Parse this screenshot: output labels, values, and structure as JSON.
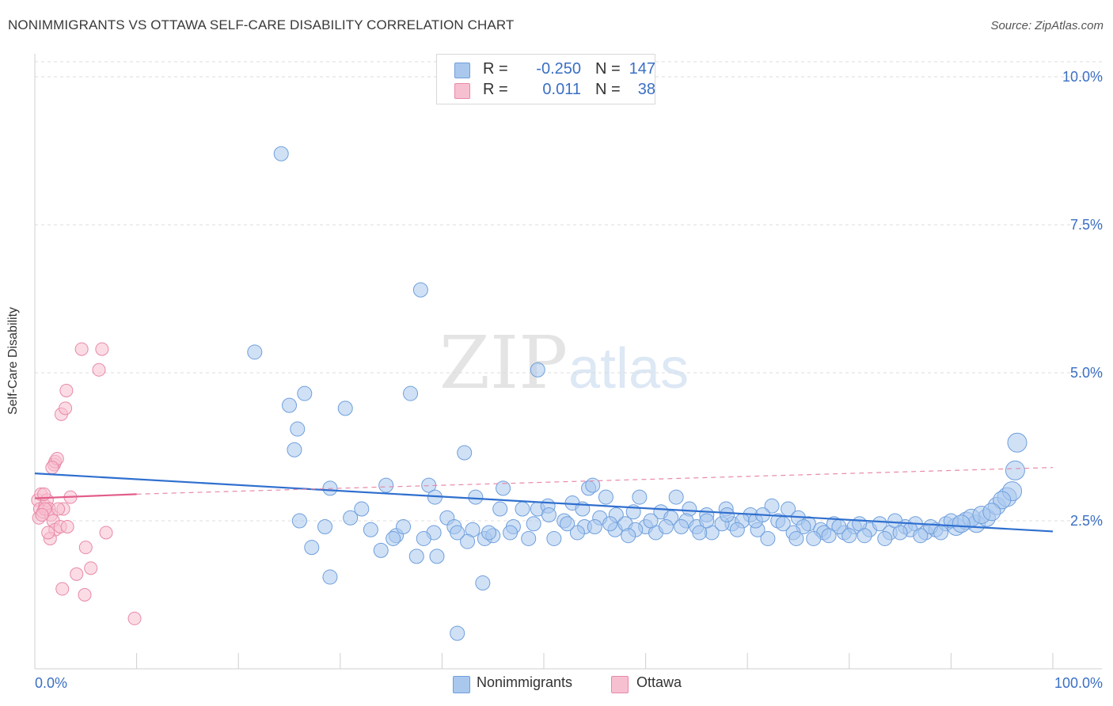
{
  "title": "NONIMMIGRANTS VS OTTAWA SELF-CARE DISABILITY CORRELATION CHART",
  "source": "Source: ZipAtlas.com",
  "watermark": {
    "zip": "ZIP",
    "atlas": "atlas"
  },
  "legend": {
    "rows": [
      {
        "r_label": "R =",
        "r_value": "-0.250",
        "n_label": "N =",
        "n_value": "147",
        "color": "#aac8ee",
        "border": "#6f9fdc"
      },
      {
        "r_label": "R =",
        "r_value": "0.011",
        "n_label": "N =",
        "n_value": "38",
        "color": "#f7c0d0",
        "border": "#e889a8"
      }
    ]
  },
  "bottom_legend": [
    {
      "label": "Nonimmigrants",
      "color": "#aac8ee",
      "border": "#6f9fdc"
    },
    {
      "label": "Ottawa",
      "color": "#f7c0d0",
      "border": "#e889a8"
    }
  ],
  "chart_data": {
    "type": "scatter",
    "title": "NONIMMIGRANTS VS OTTAWA SELF-CARE DISABILITY CORRELATION CHART",
    "xlabel": "",
    "ylabel": "Self-Care Disability",
    "xlim": [
      0,
      100
    ],
    "ylim": [
      0,
      10.5
    ],
    "x_tick_labels": [
      {
        "value": 0,
        "label": "0.0%"
      },
      {
        "value": 100,
        "label": "100.0%"
      }
    ],
    "y_tick_labels": [
      {
        "value": 2.5,
        "label": "2.5%"
      },
      {
        "value": 5.0,
        "label": "5.0%"
      },
      {
        "value": 7.5,
        "label": "7.5%"
      },
      {
        "value": 10.0,
        "label": "10.0%"
      }
    ],
    "grid": true,
    "legend_position": "top-center",
    "series": [
      {
        "name": "Nonimmigrants",
        "color": "#6f9fdc",
        "fill": "#aac8ee",
        "trend": {
          "x0": 0,
          "y0": 3.3,
          "x1": 100,
          "y1": 2.32,
          "dashed_extension": false
        },
        "points": [
          [
            24.2,
            8.7
          ],
          [
            37.9,
            6.4
          ],
          [
            21.6,
            5.35
          ],
          [
            49.4,
            5.05
          ],
          [
            26.5,
            4.65
          ],
          [
            36.9,
            4.65
          ],
          [
            25.0,
            4.45
          ],
          [
            30.5,
            4.4
          ],
          [
            25.8,
            4.05
          ],
          [
            25.5,
            3.7
          ],
          [
            42.2,
            3.65
          ],
          [
            96.5,
            3.82
          ],
          [
            29.0,
            3.05
          ],
          [
            34.5,
            3.1
          ],
          [
            38.7,
            3.1
          ],
          [
            46.0,
            3.05
          ],
          [
            54.4,
            3.05
          ],
          [
            54.8,
            3.1
          ],
          [
            39.3,
            2.9
          ],
          [
            43.3,
            2.9
          ],
          [
            56.1,
            2.9
          ],
          [
            59.4,
            2.9
          ],
          [
            63.0,
            2.9
          ],
          [
            32.1,
            2.7
          ],
          [
            45.7,
            2.7
          ],
          [
            47.9,
            2.7
          ],
          [
            49.4,
            2.7
          ],
          [
            50.4,
            2.75
          ],
          [
            52.8,
            2.8
          ],
          [
            53.8,
            2.7
          ],
          [
            57.1,
            2.6
          ],
          [
            58.8,
            2.65
          ],
          [
            61.5,
            2.65
          ],
          [
            64.3,
            2.7
          ],
          [
            66.0,
            2.6
          ],
          [
            67.9,
            2.7
          ],
          [
            70.3,
            2.6
          ],
          [
            72.4,
            2.75
          ],
          [
            74.0,
            2.7
          ],
          [
            26.0,
            2.5
          ],
          [
            28.5,
            2.4
          ],
          [
            31.0,
            2.55
          ],
          [
            33.0,
            2.35
          ],
          [
            35.5,
            2.25
          ],
          [
            36.2,
            2.4
          ],
          [
            40.5,
            2.55
          ],
          [
            41.2,
            2.4
          ],
          [
            43.0,
            2.35
          ],
          [
            44.2,
            2.2
          ],
          [
            47.0,
            2.4
          ],
          [
            48.5,
            2.2
          ],
          [
            50.5,
            2.6
          ],
          [
            52.0,
            2.5
          ],
          [
            54.0,
            2.4
          ],
          [
            55.5,
            2.55
          ],
          [
            57.0,
            2.35
          ],
          [
            58.0,
            2.45
          ],
          [
            60.0,
            2.4
          ],
          [
            61.0,
            2.3
          ],
          [
            62.5,
            2.55
          ],
          [
            64.0,
            2.5
          ],
          [
            65.0,
            2.4
          ],
          [
            66.5,
            2.3
          ],
          [
            68.5,
            2.45
          ],
          [
            69.5,
            2.5
          ],
          [
            71.0,
            2.35
          ],
          [
            73.0,
            2.5
          ],
          [
            75.0,
            2.55
          ],
          [
            76.0,
            2.45
          ],
          [
            77.2,
            2.35
          ],
          [
            78.5,
            2.45
          ],
          [
            79.5,
            2.3
          ],
          [
            80.5,
            2.4
          ],
          [
            82.0,
            2.35
          ],
          [
            83.0,
            2.45
          ],
          [
            84.0,
            2.3
          ],
          [
            85.5,
            2.4
          ],
          [
            86.5,
            2.45
          ],
          [
            87.5,
            2.3
          ],
          [
            88.5,
            2.35
          ],
          [
            89.5,
            2.45
          ],
          [
            90.5,
            2.4
          ],
          [
            91.5,
            2.5
          ],
          [
            92.5,
            2.45
          ],
          [
            93.5,
            2.55
          ],
          [
            94.5,
            2.75
          ],
          [
            95.5,
            2.9
          ],
          [
            96.0,
            3.0
          ],
          [
            92.0,
            2.55
          ],
          [
            90.0,
            2.5
          ],
          [
            88.0,
            2.4
          ],
          [
            86.0,
            2.35
          ],
          [
            84.5,
            2.5
          ],
          [
            81.0,
            2.45
          ],
          [
            79.0,
            2.4
          ],
          [
            77.5,
            2.3
          ],
          [
            76.5,
            2.2
          ],
          [
            75.5,
            2.4
          ],
          [
            74.5,
            2.3
          ],
          [
            73.5,
            2.45
          ],
          [
            72.0,
            2.2
          ],
          [
            70.8,
            2.5
          ],
          [
            69.0,
            2.35
          ],
          [
            67.5,
            2.45
          ],
          [
            66.0,
            2.5
          ],
          [
            65.3,
            2.3
          ],
          [
            63.5,
            2.4
          ],
          [
            62.0,
            2.4
          ],
          [
            60.5,
            2.5
          ],
          [
            59.0,
            2.35
          ],
          [
            58.3,
            2.25
          ],
          [
            56.5,
            2.45
          ],
          [
            55.0,
            2.4
          ],
          [
            53.3,
            2.3
          ],
          [
            52.3,
            2.45
          ],
          [
            51.0,
            2.2
          ],
          [
            49.0,
            2.45
          ],
          [
            46.7,
            2.3
          ],
          [
            45.0,
            2.25
          ],
          [
            44.6,
            2.3
          ],
          [
            42.5,
            2.15
          ],
          [
            41.5,
            2.3
          ],
          [
            39.2,
            2.3
          ],
          [
            38.2,
            2.2
          ],
          [
            35.2,
            2.2
          ],
          [
            34.0,
            2.0
          ],
          [
            27.2,
            2.05
          ],
          [
            37.5,
            1.9
          ],
          [
            39.5,
            1.9
          ],
          [
            29.0,
            1.55
          ],
          [
            44.0,
            1.45
          ],
          [
            41.5,
            0.6
          ],
          [
            81.5,
            2.25
          ],
          [
            83.5,
            2.2
          ],
          [
            85.0,
            2.3
          ],
          [
            87.0,
            2.25
          ],
          [
            89.0,
            2.3
          ],
          [
            91.0,
            2.45
          ],
          [
            93.0,
            2.6
          ],
          [
            95.0,
            2.85
          ],
          [
            96.3,
            3.35
          ],
          [
            94.0,
            2.65
          ],
          [
            80.0,
            2.25
          ],
          [
            78.0,
            2.25
          ],
          [
            68.0,
            2.6
          ],
          [
            71.5,
            2.6
          ],
          [
            74.8,
            2.2
          ]
        ]
      },
      {
        "name": "Ottawa",
        "color": "#e889a8",
        "fill": "#f7c0d0",
        "trend": {
          "x0": 0,
          "y0": 2.88,
          "x1": 10,
          "y1": 2.95,
          "dashed_to": {
            "x": 100,
            "y": 3.4
          }
        },
        "points": [
          [
            0.3,
            2.85
          ],
          [
            0.5,
            2.7
          ],
          [
            0.4,
            2.55
          ],
          [
            0.6,
            2.95
          ],
          [
            0.8,
            2.65
          ],
          [
            1.0,
            2.75
          ],
          [
            1.2,
            2.85
          ],
          [
            1.4,
            2.7
          ],
          [
            1.6,
            2.6
          ],
          [
            1.8,
            2.5
          ],
          [
            2.0,
            2.35
          ],
          [
            1.5,
            2.2
          ],
          [
            2.5,
            2.4
          ],
          [
            2.8,
            2.7
          ],
          [
            3.2,
            2.4
          ],
          [
            3.5,
            2.9
          ],
          [
            1.9,
            3.45
          ],
          [
            2.0,
            3.5
          ],
          [
            2.2,
            3.55
          ],
          [
            1.7,
            3.4
          ],
          [
            2.6,
            4.3
          ],
          [
            3.0,
            4.4
          ],
          [
            3.1,
            4.7
          ],
          [
            4.6,
            5.4
          ],
          [
            6.6,
            5.4
          ],
          [
            6.3,
            5.05
          ],
          [
            5.0,
            2.05
          ],
          [
            4.1,
            1.6
          ],
          [
            5.5,
            1.7
          ],
          [
            2.7,
            1.35
          ],
          [
            4.9,
            1.25
          ],
          [
            7.0,
            2.3
          ],
          [
            9.8,
            0.85
          ],
          [
            1.0,
            2.7
          ],
          [
            0.7,
            2.6
          ],
          [
            2.3,
            2.7
          ],
          [
            1.3,
            2.3
          ],
          [
            0.9,
            2.95
          ]
        ]
      }
    ]
  }
}
